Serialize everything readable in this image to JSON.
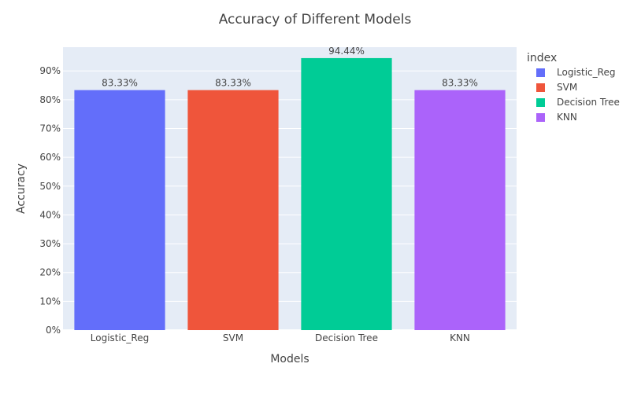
{
  "chart_data": {
    "type": "bar",
    "title": "Accuracy of Different Models",
    "xlabel": "Models",
    "ylabel": "Accuracy",
    "categories": [
      "Logistic_Reg",
      "SVM",
      "Decision Tree",
      "KNN"
    ],
    "values": [
      0.8333,
      0.8333,
      0.9444,
      0.8333
    ],
    "data_labels": [
      "83.33%",
      "83.33%",
      "94.44%",
      "83.33%"
    ],
    "colors": [
      "#636efa",
      "#ef553b",
      "#00cc96",
      "#ab63fa"
    ],
    "ylim": [
      0,
      0.9824
    ],
    "yticks": [
      0,
      0.1,
      0.2,
      0.3,
      0.4,
      0.5,
      0.6,
      0.7,
      0.8,
      0.9
    ],
    "ytick_labels": [
      "0%",
      "10%",
      "20%",
      "30%",
      "40%",
      "50%",
      "60%",
      "70%",
      "80%",
      "90%"
    ],
    "grid": true,
    "plot_background": "#e5ecf6",
    "legend": {
      "title": "index",
      "placement": "right",
      "entries": [
        "Logistic_Reg",
        "SVM",
        "Decision Tree",
        "KNN"
      ]
    }
  }
}
